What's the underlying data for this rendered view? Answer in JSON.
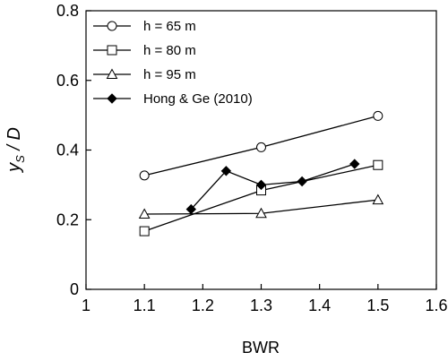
{
  "chart_data": {
    "type": "line",
    "xlabel": "BWR",
    "ylabel": {
      "main": "y",
      "sub": "S",
      "rest": " / D"
    },
    "xlim": [
      1,
      1.6
    ],
    "ylim": [
      0,
      0.8
    ],
    "xticks": [
      1,
      1.1,
      1.2,
      1.3,
      1.4,
      1.5,
      1.6
    ],
    "xtick_labels": [
      "1",
      "1.1",
      "1.2",
      "1.3",
      "1.4",
      "1.5",
      "1.6"
    ],
    "yticks": [
      0,
      0.2,
      0.4,
      0.6,
      0.8
    ],
    "ytick_labels": [
      "0",
      "0.2",
      "0.4",
      "0.6",
      "0.8"
    ],
    "grid": false,
    "legend_position": "top-left",
    "series": [
      {
        "name": "h = 65 m",
        "marker": "circle-open",
        "color": "#000000",
        "x": [
          1.1,
          1.3,
          1.5
        ],
        "y": [
          0.327,
          0.408,
          0.498
        ]
      },
      {
        "name": "h = 80 m",
        "marker": "square-open",
        "color": "#000000",
        "x": [
          1.1,
          1.3,
          1.5
        ],
        "y": [
          0.167,
          0.284,
          0.357
        ]
      },
      {
        "name": "h = 95 m",
        "marker": "triangle-open",
        "color": "#000000",
        "x": [
          1.1,
          1.3,
          1.5
        ],
        "y": [
          0.216,
          0.218,
          0.257
        ]
      },
      {
        "name": "Hong & Ge (2010)",
        "marker": "diamond-filled",
        "color": "#000000",
        "x": [
          1.18,
          1.24,
          1.3,
          1.37,
          1.46
        ],
        "y": [
          0.23,
          0.34,
          0.3,
          0.31,
          0.36
        ]
      }
    ]
  }
}
